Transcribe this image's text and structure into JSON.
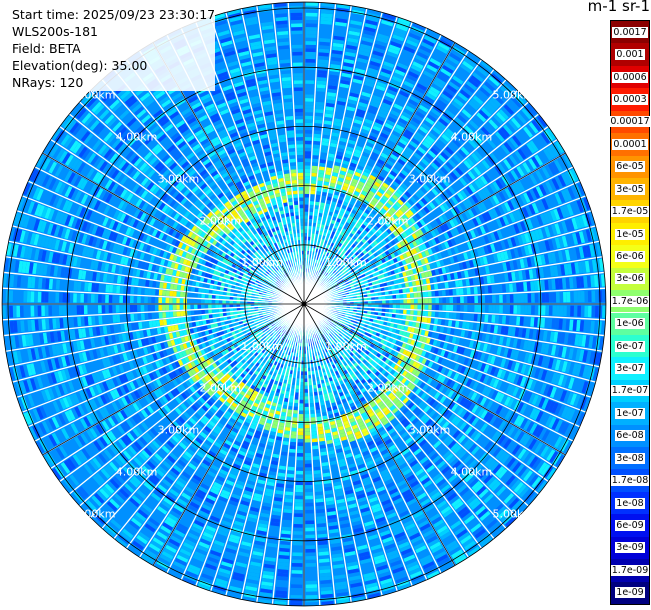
{
  "header": {
    "start_time": "Start time: 2025/09/23 23:30:17",
    "instrument": "WLS200s-181",
    "field": "Field: BETA",
    "elevation": "Elevation(deg): 35.00",
    "nrays": "NRays: 120"
  },
  "colorbar": {
    "unit_label": "m-1 sr-1",
    "levels": [
      {
        "label": "0.0017",
        "color": "#8b0000"
      },
      {
        "label": "0.001",
        "color": "#b00000"
      },
      {
        "label": "0.0006",
        "color": "#e00000"
      },
      {
        "label": "0.0003",
        "color": "#ff1a00"
      },
      {
        "label": "0.00017",
        "color": "#ff4a00"
      },
      {
        "label": "0.0001",
        "color": "#ff7000"
      },
      {
        "label": "6e-05",
        "color": "#ff9400"
      },
      {
        "label": "3e-05",
        "color": "#ffb400"
      },
      {
        "label": "1.7e-05",
        "color": "#ffd400"
      },
      {
        "label": "1e-05",
        "color": "#ffee00"
      },
      {
        "label": "6e-06",
        "color": "#f4ff18"
      },
      {
        "label": "3e-06",
        "color": "#c4ff3c"
      },
      {
        "label": "1.7e-06",
        "color": "#8fff6e"
      },
      {
        "label": "1e-06",
        "color": "#5effa0"
      },
      {
        "label": "6e-07",
        "color": "#2cffd0"
      },
      {
        "label": "3e-07",
        "color": "#10f0ff"
      },
      {
        "label": "1.7e-07",
        "color": "#00d0ff"
      },
      {
        "label": "1e-07",
        "color": "#00b0ff"
      },
      {
        "label": "6e-08",
        "color": "#0090ff"
      },
      {
        "label": "3e-08",
        "color": "#0070ff"
      },
      {
        "label": "1.7e-08",
        "color": "#0050ff"
      },
      {
        "label": "1e-08",
        "color": "#0030ff"
      },
      {
        "label": "6e-09",
        "color": "#0010f0"
      },
      {
        "label": "3e-09",
        "color": "#0000d8"
      },
      {
        "label": "1.7e-09",
        "color": "#0000b0"
      },
      {
        "label": "1e-09",
        "color": "#000080"
      }
    ]
  },
  "chart_data": {
    "type": "heatmap",
    "projection": "polar PPI",
    "field": "BETA",
    "elevation_deg": 35.0,
    "n_rays": 120,
    "range_rings_km": [
      1.0,
      2.0,
      3.0,
      4.0,
      5.0
    ],
    "ring_labels": [
      "1.00km",
      "2.00km",
      "3.00km",
      "4.00km",
      "5.00km"
    ],
    "max_range_km": 5.1,
    "radial_lines_deg": [
      0,
      30,
      60,
      90,
      120,
      150,
      180,
      210,
      240,
      270,
      300,
      330
    ],
    "background_level": "6e-08",
    "inner_region": {
      "range_km": [
        0.0,
        1.75
      ],
      "level": "1.7e-07"
    },
    "enhanced_band": {
      "range_km": [
        1.85,
        2.3
      ],
      "levels": [
        "1.7e-06",
        "6e-06",
        "1e-05"
      ]
    },
    "colorscale": "jet, logarithmic, 1e-09 to 0.0017"
  }
}
